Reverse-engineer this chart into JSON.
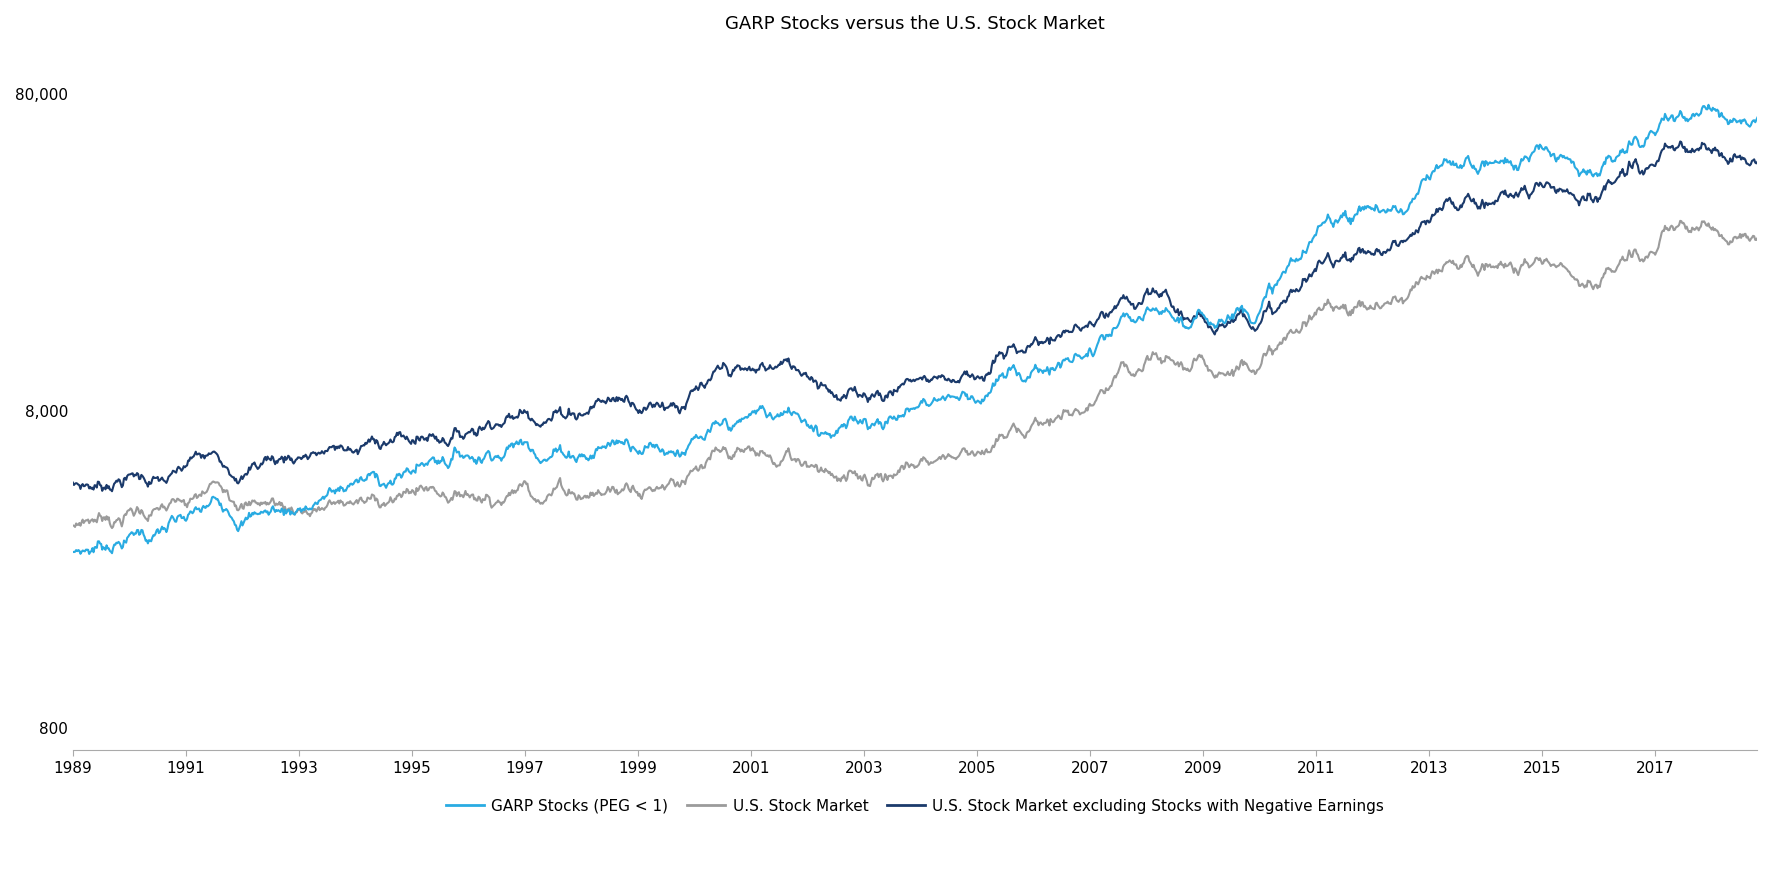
{
  "title": "GARP Stocks versus the U.S. Stock Market",
  "title_fontsize": 13,
  "background_color": "#ffffff",
  "line_colors": {
    "garp": "#29ABE2",
    "market": "#9B9B9B",
    "market_excl": "#1B3A6B"
  },
  "line_widths": {
    "garp": 1.5,
    "market": 1.5,
    "market_excl": 1.5
  },
  "legend_labels": [
    "GARP Stocks (PEG < 1)",
    "U.S. Stock Market",
    "U.S. Stock Market excluding Stocks with Negative Earnings"
  ],
  "ylabel_ticks": [
    800,
    8000,
    80000
  ],
  "ylabel_labels": [
    "800",
    "8,000",
    "80,000"
  ],
  "xlim": [
    1989.0,
    2018.8
  ],
  "ylim": [
    680,
    110000
  ],
  "xticks": [
    1989,
    1991,
    1993,
    1995,
    1997,
    1999,
    2001,
    2003,
    2005,
    2007,
    2009,
    2011,
    2013,
    2015,
    2017
  ],
  "seed": 7
}
